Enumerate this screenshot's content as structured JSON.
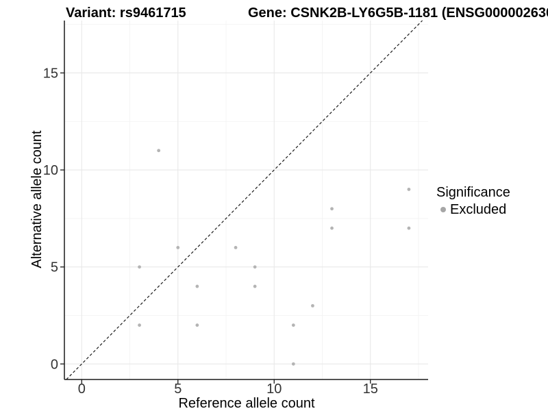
{
  "titles": {
    "variant": "Variant: rs9461715",
    "gene": "Gene: CSNK2B-LY6G5B-1181 (ENSG000002630"
  },
  "chart_data": {
    "type": "scatter",
    "xlabel": "Reference allele count",
    "ylabel": "Alternative allele count",
    "x_ticks": [
      0,
      5,
      10,
      15
    ],
    "y_ticks": [
      0,
      5,
      10,
      15
    ],
    "x_minor": [
      2.5,
      7.5,
      12.5,
      17.5
    ],
    "y_minor": [
      2.5,
      7.5,
      12.5,
      17.5
    ],
    "xlim": [
      -0.9,
      18.0
    ],
    "ylim": [
      -0.8,
      17.7
    ],
    "grid": true,
    "identity_line": {
      "style": "dashed",
      "equation": "y = x"
    },
    "series": [
      {
        "name": "Excluded",
        "color": "#b4b4b4",
        "points": [
          [
            3,
            2
          ],
          [
            3,
            5
          ],
          [
            4,
            11
          ],
          [
            5,
            6
          ],
          [
            6,
            2
          ],
          [
            6,
            4
          ],
          [
            8,
            6
          ],
          [
            9,
            4
          ],
          [
            9,
            5
          ],
          [
            11,
            0
          ],
          [
            11,
            2
          ],
          [
            12,
            3
          ],
          [
            13,
            7
          ],
          [
            13,
            8
          ],
          [
            17,
            7
          ],
          [
            17,
            9
          ]
        ]
      }
    ],
    "legend": {
      "title": "Significance",
      "position": "right",
      "items": [
        {
          "label": "Excluded",
          "color": "#a6a6a6"
        }
      ]
    },
    "colors": {
      "point": "#b4b4b4",
      "grid_major": "#e8e8e8",
      "grid_minor": "#f3f3f3",
      "axis": "#1a1a1a",
      "tick_text": "#333333"
    }
  }
}
